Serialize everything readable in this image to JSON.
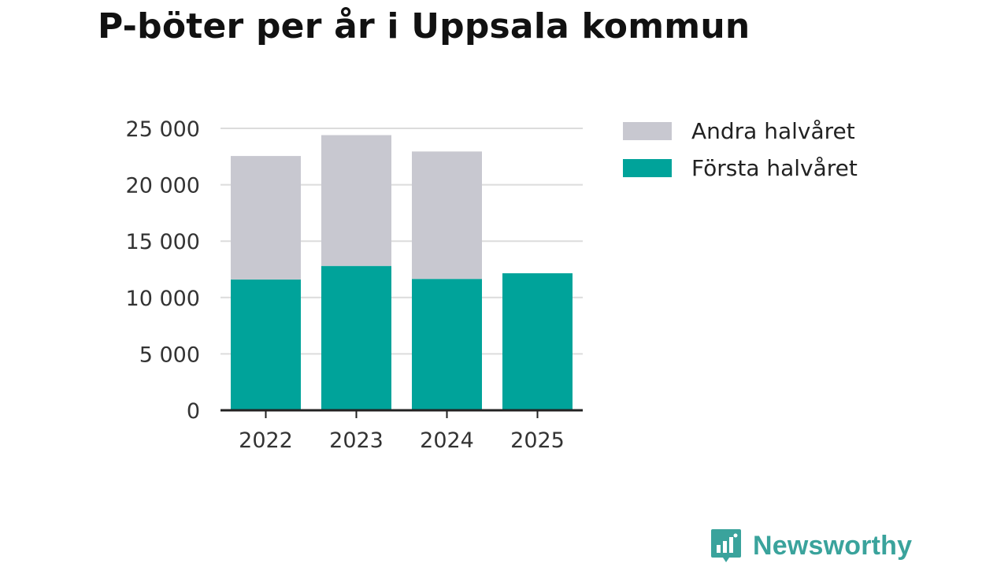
{
  "title": "P-böter per år i Uppsala kommun",
  "brand": {
    "name": "Newsworthy",
    "icon": "bar-chart-speech-bubble-icon",
    "color": "#3aa39c"
  },
  "colors": {
    "forsta": "#00a39a",
    "andra": "#c8c8d0",
    "grid": "#dcdcdc",
    "axis": "#222222"
  },
  "chart_data": {
    "type": "bar",
    "stacked": true,
    "categories": [
      "2022",
      "2023",
      "2024",
      "2025"
    ],
    "series": [
      {
        "name": "Första halvåret",
        "values": [
          11600,
          12800,
          11650,
          12150
        ]
      },
      {
        "name": "Andra halvåret",
        "values": [
          10950,
          11600,
          11300,
          0
        ]
      }
    ],
    "ylim": [
      0,
      25000
    ],
    "yticks": [
      0,
      5000,
      10000,
      15000,
      20000,
      25000
    ],
    "ytick_labels": [
      "0",
      "5 000",
      "10 000",
      "15 000",
      "20 000",
      "25 000"
    ],
    "grid": true,
    "legend": {
      "position": "right",
      "entries": [
        "Andra halvåret",
        "Första halvåret"
      ]
    }
  }
}
